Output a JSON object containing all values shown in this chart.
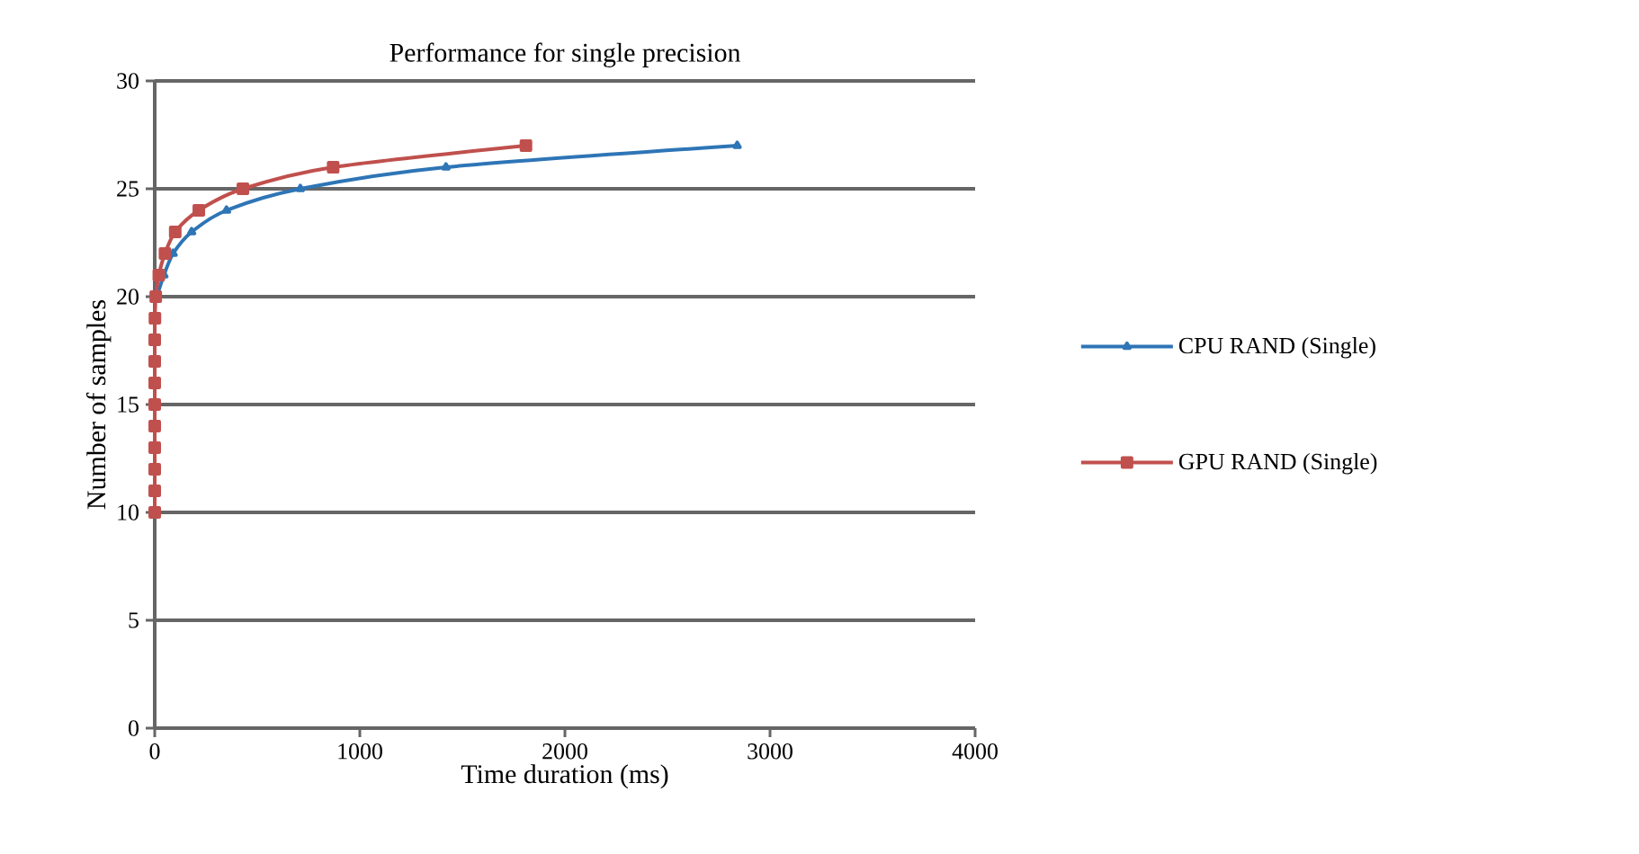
{
  "chart_data": {
    "type": "line",
    "title": "Performance for single precision",
    "xlabel": "Time duration (ms)",
    "ylabel": "Number of samples",
    "xlim": [
      0,
      4000
    ],
    "xticks": [
      0,
      1000,
      2000,
      3000,
      4000
    ],
    "ylim": [
      0,
      30
    ],
    "yticks": [
      0,
      5,
      10,
      15,
      20,
      25,
      30
    ],
    "grid": "y",
    "legend": "right",
    "series": [
      {
        "name": "CPU RAND (Single)",
        "color": "#2e75b6",
        "marker": "triangle",
        "x": [
          10,
          45,
          90,
          180,
          350,
          710,
          1420,
          2840
        ],
        "values": [
          20,
          21,
          22,
          23,
          24,
          25,
          26,
          27
        ]
      },
      {
        "name": "GPU RAND (Single)",
        "color": "#c0504d",
        "marker": "square",
        "x": [
          0,
          0,
          0,
          0,
          0,
          0,
          0,
          0,
          0,
          1,
          5,
          20,
          50,
          100,
          215,
          430,
          870,
          1810
        ],
        "values": [
          10,
          11,
          12,
          13,
          14,
          15,
          16,
          17,
          18,
          19,
          20,
          21,
          22,
          23,
          24,
          25,
          26,
          27
        ]
      }
    ]
  }
}
